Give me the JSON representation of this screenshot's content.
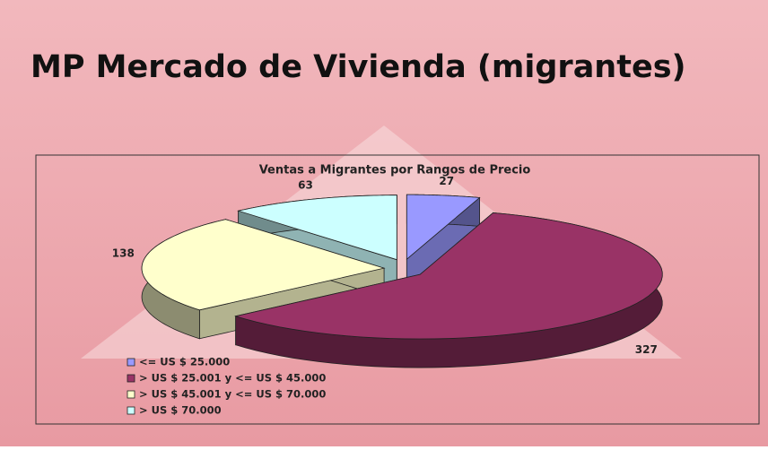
{
  "slide_title": "MP Mercado de Vivienda (migrantes)",
  "chart_data": {
    "type": "pie3d",
    "title": "Ventas a Migrantes por Rangos de Precio",
    "categories": [
      "<= US $ 25.000",
      "> US $ 25.001 y <= US $ 45.000",
      "> US $ 45.001 y <= US $ 70.000",
      "> US $ 70.000"
    ],
    "values": [
      27,
      327,
      138,
      63
    ],
    "colors": [
      "#9999ff",
      "#993366",
      "#ffffcc",
      "#ccffff"
    ],
    "legend": "bottom-left"
  }
}
